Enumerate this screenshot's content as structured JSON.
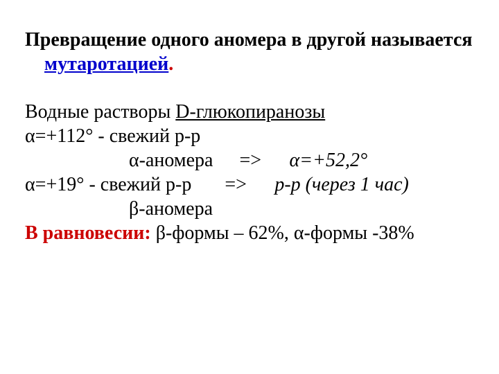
{
  "colors": {
    "text": "#000000",
    "term": "#0000cc",
    "accent": "#cc0000",
    "background": "#ffffff"
  },
  "typography": {
    "font_family": "Times New Roman",
    "base_fontsize_pt": 21,
    "line_height": 1.25
  },
  "p1": {
    "lead": "Превращение одного аномера в другой называется ",
    "term": "мутаротацией",
    "dot": "."
  },
  "p2": {
    "line1_a": "Водные растворы ",
    "line1_b": "D-глюкопиранозы",
    "line2": "α=+112° - свежий р-р",
    "line3_a": "α-аномера",
    "line3_arrow": "=>",
    "line3_b": "α=+52,2°",
    "line4_a": "α=+19° - свежий р-р",
    "line4_arrow": "=>",
    "line4_b": "р-р (через 1 час)",
    "line5": "β-аномера"
  },
  "p3": {
    "label": "В равновесии:",
    "rest": "  β-формы – 62%, α-формы -38%"
  }
}
